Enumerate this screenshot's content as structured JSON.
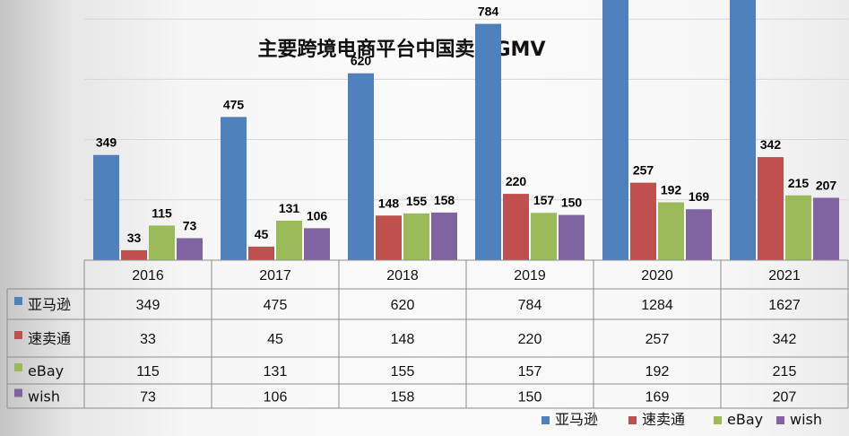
{
  "chart_data": {
    "type": "bar",
    "title": "主要跨境电商平台中国卖家GMV",
    "categories": [
      "2016",
      "2017",
      "2018",
      "2019",
      "2020",
      "2021"
    ],
    "series": [
      {
        "name": "亚马逊",
        "color": "#4f81bd",
        "values": [
          349,
          475,
          620,
          784,
          1284,
          1627
        ]
      },
      {
        "name": "速卖通",
        "color": "#c0504d",
        "values": [
          33,
          45,
          148,
          220,
          257,
          342
        ]
      },
      {
        "name": "eBay",
        "color": "#9bbb59",
        "values": [
          115,
          131,
          155,
          157,
          192,
          215
        ]
      },
      {
        "name": "wish",
        "color": "#8064a2",
        "values": [
          73,
          106,
          158,
          150,
          169,
          207
        ]
      }
    ],
    "ylim": [
      0,
      2000
    ],
    "grid": true,
    "data_table": true,
    "legend_position": "bottom-right"
  }
}
